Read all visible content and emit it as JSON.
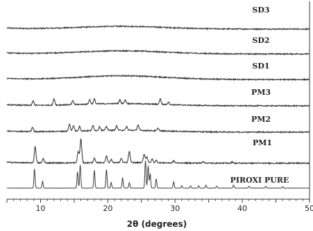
{
  "chart_data": {
    "type": "line",
    "xlabel": "2θ (degrees)",
    "ylabel": "",
    "xlim": [
      5,
      50
    ],
    "xticks": [
      10,
      20,
      30,
      40,
      50
    ],
    "grid": false,
    "series": [
      {
        "name": "SD3",
        "peaks": [],
        "halo": 0.22
      },
      {
        "name": "SD2",
        "peaks": [],
        "halo": 0.25
      },
      {
        "name": "SD1",
        "peaks": [],
        "halo": 0.3
      },
      {
        "name": "PM3",
        "peaks": [
          [
            8.9,
            0.35
          ],
          [
            12.0,
            0.5
          ],
          [
            14.8,
            0.3
          ],
          [
            17.3,
            0.35
          ],
          [
            18.0,
            0.4
          ],
          [
            21.8,
            0.3
          ],
          [
            22.6,
            0.3
          ],
          [
            27.8,
            0.45
          ],
          [
            29.0,
            0.2
          ]
        ],
        "halo": 0.18
      },
      {
        "name": "PM2",
        "peaks": [
          [
            8.8,
            0.35
          ],
          [
            14.3,
            0.55
          ],
          [
            14.9,
            0.45
          ],
          [
            15.8,
            0.35
          ],
          [
            17.8,
            0.4
          ],
          [
            18.8,
            0.3
          ],
          [
            19.8,
            0.3
          ],
          [
            21.3,
            0.35
          ],
          [
            22.8,
            0.3
          ],
          [
            24.5,
            0.45
          ],
          [
            27.5,
            0.2
          ]
        ],
        "halo": 0.15
      },
      {
        "name": "PM1",
        "peaks": [
          [
            9.2,
            1.3
          ],
          [
            10.4,
            0.35
          ],
          [
            15.6,
            0.9
          ],
          [
            16.0,
            1.9
          ],
          [
            18.0,
            0.35
          ],
          [
            19.8,
            0.55
          ],
          [
            20.5,
            0.25
          ],
          [
            22.0,
            0.35
          ],
          [
            23.2,
            0.9
          ],
          [
            25.4,
            0.7
          ],
          [
            25.8,
            0.5
          ],
          [
            26.6,
            0.3
          ],
          [
            27.2,
            0.2
          ],
          [
            29.8,
            0.15
          ],
          [
            34.2,
            0.15
          ],
          [
            38.5,
            0.1
          ]
        ],
        "halo": 0.05
      },
      {
        "name": "PIROXI PURE",
        "peaks": [
          [
            9.1,
            1.55
          ],
          [
            10.3,
            0.55
          ],
          [
            15.5,
            1.3
          ],
          [
            15.9,
            1.85
          ],
          [
            18.0,
            1.45
          ],
          [
            19.8,
            1.5
          ],
          [
            20.5,
            0.45
          ],
          [
            22.2,
            0.85
          ],
          [
            23.2,
            0.45
          ],
          [
            25.6,
            2.2
          ],
          [
            26.0,
            1.8
          ],
          [
            26.3,
            1.15
          ],
          [
            27.2,
            0.75
          ],
          [
            29.8,
            0.5
          ],
          [
            31.0,
            0.2
          ],
          [
            32.3,
            0.2
          ],
          [
            33.5,
            0.2
          ],
          [
            34.6,
            0.25
          ],
          [
            36.2,
            0.15
          ],
          [
            38.7,
            0.25
          ],
          [
            41.0,
            0.15
          ],
          [
            43.5,
            0.15
          ],
          [
            46.0,
            0.12
          ]
        ],
        "halo": 0.0
      }
    ]
  }
}
